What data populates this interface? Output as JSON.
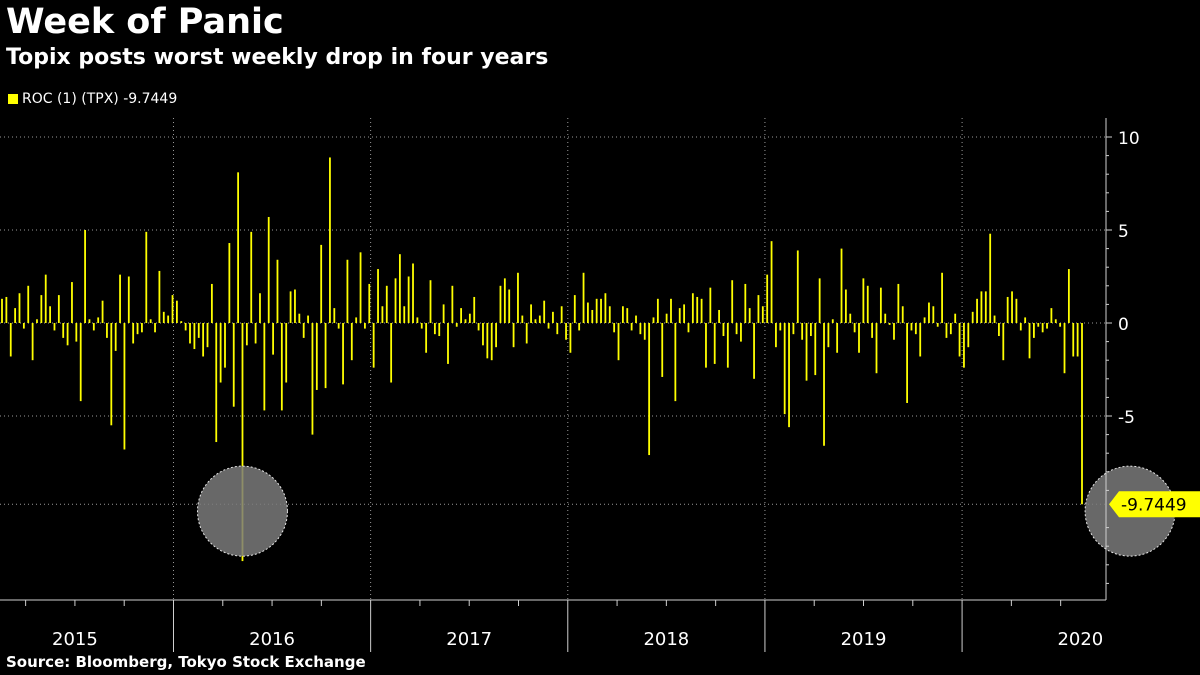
{
  "header": {
    "title": "Week of Panic",
    "subtitle": "Topix posts worst weekly drop in four years"
  },
  "legend": {
    "label": "ROC (1) (TPX) -9.7449",
    "color": "#ffff00"
  },
  "source": "Source: Bloomberg, Tokyo Stock Exchange",
  "chart_data": {
    "type": "bar",
    "title": "Week of Panic",
    "subtitle": "Topix posts worst weekly drop in four years",
    "series_name": "ROC (1) (TPX)",
    "ylim": [
      -15,
      10.5
    ],
    "yticks": [
      10,
      5,
      0,
      -5
    ],
    "ytick_labels": [
      "10",
      "5",
      "0",
      "-5"
    ],
    "x_range": [
      2014.62,
      2020.23
    ],
    "year_labels": [
      {
        "label": "2015",
        "pos": 2015.0
      },
      {
        "label": "2016",
        "pos": 2016.0
      },
      {
        "label": "2017",
        "pos": 2017.0
      },
      {
        "label": "2018",
        "pos": 2018.0
      },
      {
        "label": "2019",
        "pos": 2019.0
      },
      {
        "label": "2020",
        "pos": 2020.1
      }
    ],
    "year_separators": [
      2015.5,
      2016.5,
      2017.5,
      2018.5,
      2019.5
    ],
    "last_value": -9.7449,
    "last_value_label": "-9.7449",
    "bar_color": "#ffff00",
    "values": [
      1.3,
      1.4,
      -1.8,
      0.8,
      1.6,
      -0.3,
      2,
      -2,
      0.2,
      1.5,
      2.6,
      0.9,
      -0.4,
      1.5,
      -0.8,
      -1.2,
      2.2,
      -1,
      -4.2,
      5,
      0.2,
      -0.4,
      0.3,
      1.2,
      -0.8,
      -5.5,
      -1.5,
      2.6,
      -6.8,
      2.5,
      -1.1,
      -0.6,
      -0.5,
      4.9,
      0.2,
      -0.5,
      2.8,
      0.6,
      0.4,
      1.5,
      1.2,
      0.1,
      -0.4,
      -1.1,
      -1.4,
      -0.8,
      -1.8,
      -1.3,
      2.1,
      -6.4,
      -3.2,
      -2.4,
      4.3,
      -4.5,
      8.1,
      -12.8,
      -1.2,
      4.9,
      -1.1,
      1.6,
      -4.7,
      5.7,
      -1.7,
      3.4,
      -4.7,
      -3.2,
      1.7,
      1.8,
      0.5,
      -0.8,
      0.4,
      -6,
      -3.6,
      4.2,
      -3.5,
      8.9,
      0.8,
      -0.3,
      -3.3,
      3.4,
      -2,
      0.3,
      3.8,
      -0.3,
      2.1,
      -2.4,
      2.9,
      0.9,
      2,
      -3.2,
      2.4,
      3.7,
      0.9,
      2.5,
      3.2,
      0.3,
      -0.3,
      -1.6,
      2.3,
      -0.6,
      -0.7,
      1,
      -2.2,
      2,
      -0.2,
      0.8,
      0.2,
      0.5,
      1.4,
      -0.4,
      -1.2,
      -1.9,
      -2,
      -1.3,
      2,
      2.4,
      1.8,
      -1.3,
      2.7,
      0.4,
      -1.1,
      1,
      0.2,
      0.4,
      1.2,
      -0.3,
      0.6,
      -0.6,
      0.9,
      -0.9,
      -1.6,
      1.5,
      -0.4,
      2.7,
      1.1,
      0.7,
      1.3,
      1.3,
      1.6,
      0.9,
      -0.5,
      -2,
      0.9,
      0.8,
      -0.4,
      0.4,
      -0.6,
      -0.9,
      -7.1,
      0.3,
      1.3,
      -2.9,
      0.5,
      1.3,
      -4.2,
      0.8,
      1,
      -0.5,
      1.6,
      1.4,
      1.3,
      -2.4,
      1.9,
      -2.2,
      0.7,
      -0.7,
      -2.4,
      2.3,
      -0.6,
      -1,
      2.1,
      0.8,
      -3,
      1.5,
      0.9,
      2.6,
      4.4,
      -1.3,
      -0.4,
      -4.9,
      -5.6,
      -0.6,
      3.9,
      -0.9,
      -3.1,
      -0.7,
      -2.8,
      2.4,
      -6.6,
      -1.3,
      0.2,
      -1.6,
      4,
      1.8,
      0.5,
      -0.5,
      -1.6,
      2.4,
      2,
      -0.8,
      -2.7,
      1.9,
      0.5,
      -0.1,
      -0.9,
      2.1,
      0.9,
      -4.3,
      -0.4,
      -0.6,
      -1.8,
      0.3,
      1.1,
      0.9,
      -0.2,
      2.7,
      -0.8,
      -0.6,
      0.5,
      -1.8,
      -2.4,
      -1.3,
      0.6,
      1.3,
      1.7,
      1.7,
      4.8,
      0.4,
      -0.7,
      -2,
      1.4,
      1.7,
      1.3,
      -0.4,
      0.3,
      -1.9,
      -0.8,
      -0.2,
      -0.5,
      -0.3,
      0.8,
      0.2,
      -0.2,
      -2.7,
      2.9,
      -1.8,
      -1.8,
      -9.7449
    ],
    "annotations": [
      {
        "type": "circle",
        "index": 55,
        "value": -9.9
      },
      {
        "type": "circle",
        "index": 258,
        "value": -9.9
      }
    ]
  }
}
